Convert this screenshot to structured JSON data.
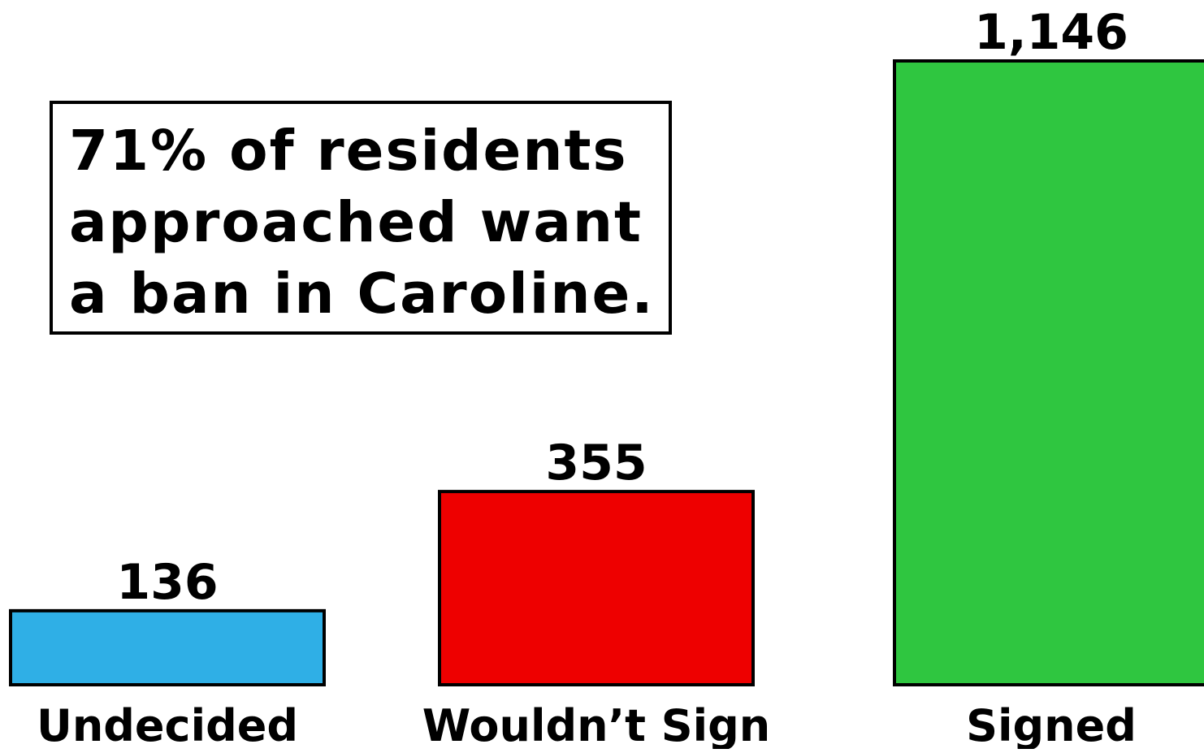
{
  "annotation": {
    "lines": [
      "71% of residents",
      "approached want",
      "a ban in Caroline."
    ]
  },
  "chart_data": {
    "type": "bar",
    "title": "",
    "xlabel": "",
    "ylabel": "",
    "ylim": [
      0,
      1146
    ],
    "categories": [
      "Undecided",
      "Wouldn’t Sign",
      "Signed"
    ],
    "values": [
      136,
      355,
      1146
    ],
    "value_labels": [
      "136",
      "355",
      "1,146"
    ],
    "colors": [
      "#2fafe6",
      "#ee0000",
      "#2fc640"
    ],
    "grid": false,
    "legend": "none"
  }
}
